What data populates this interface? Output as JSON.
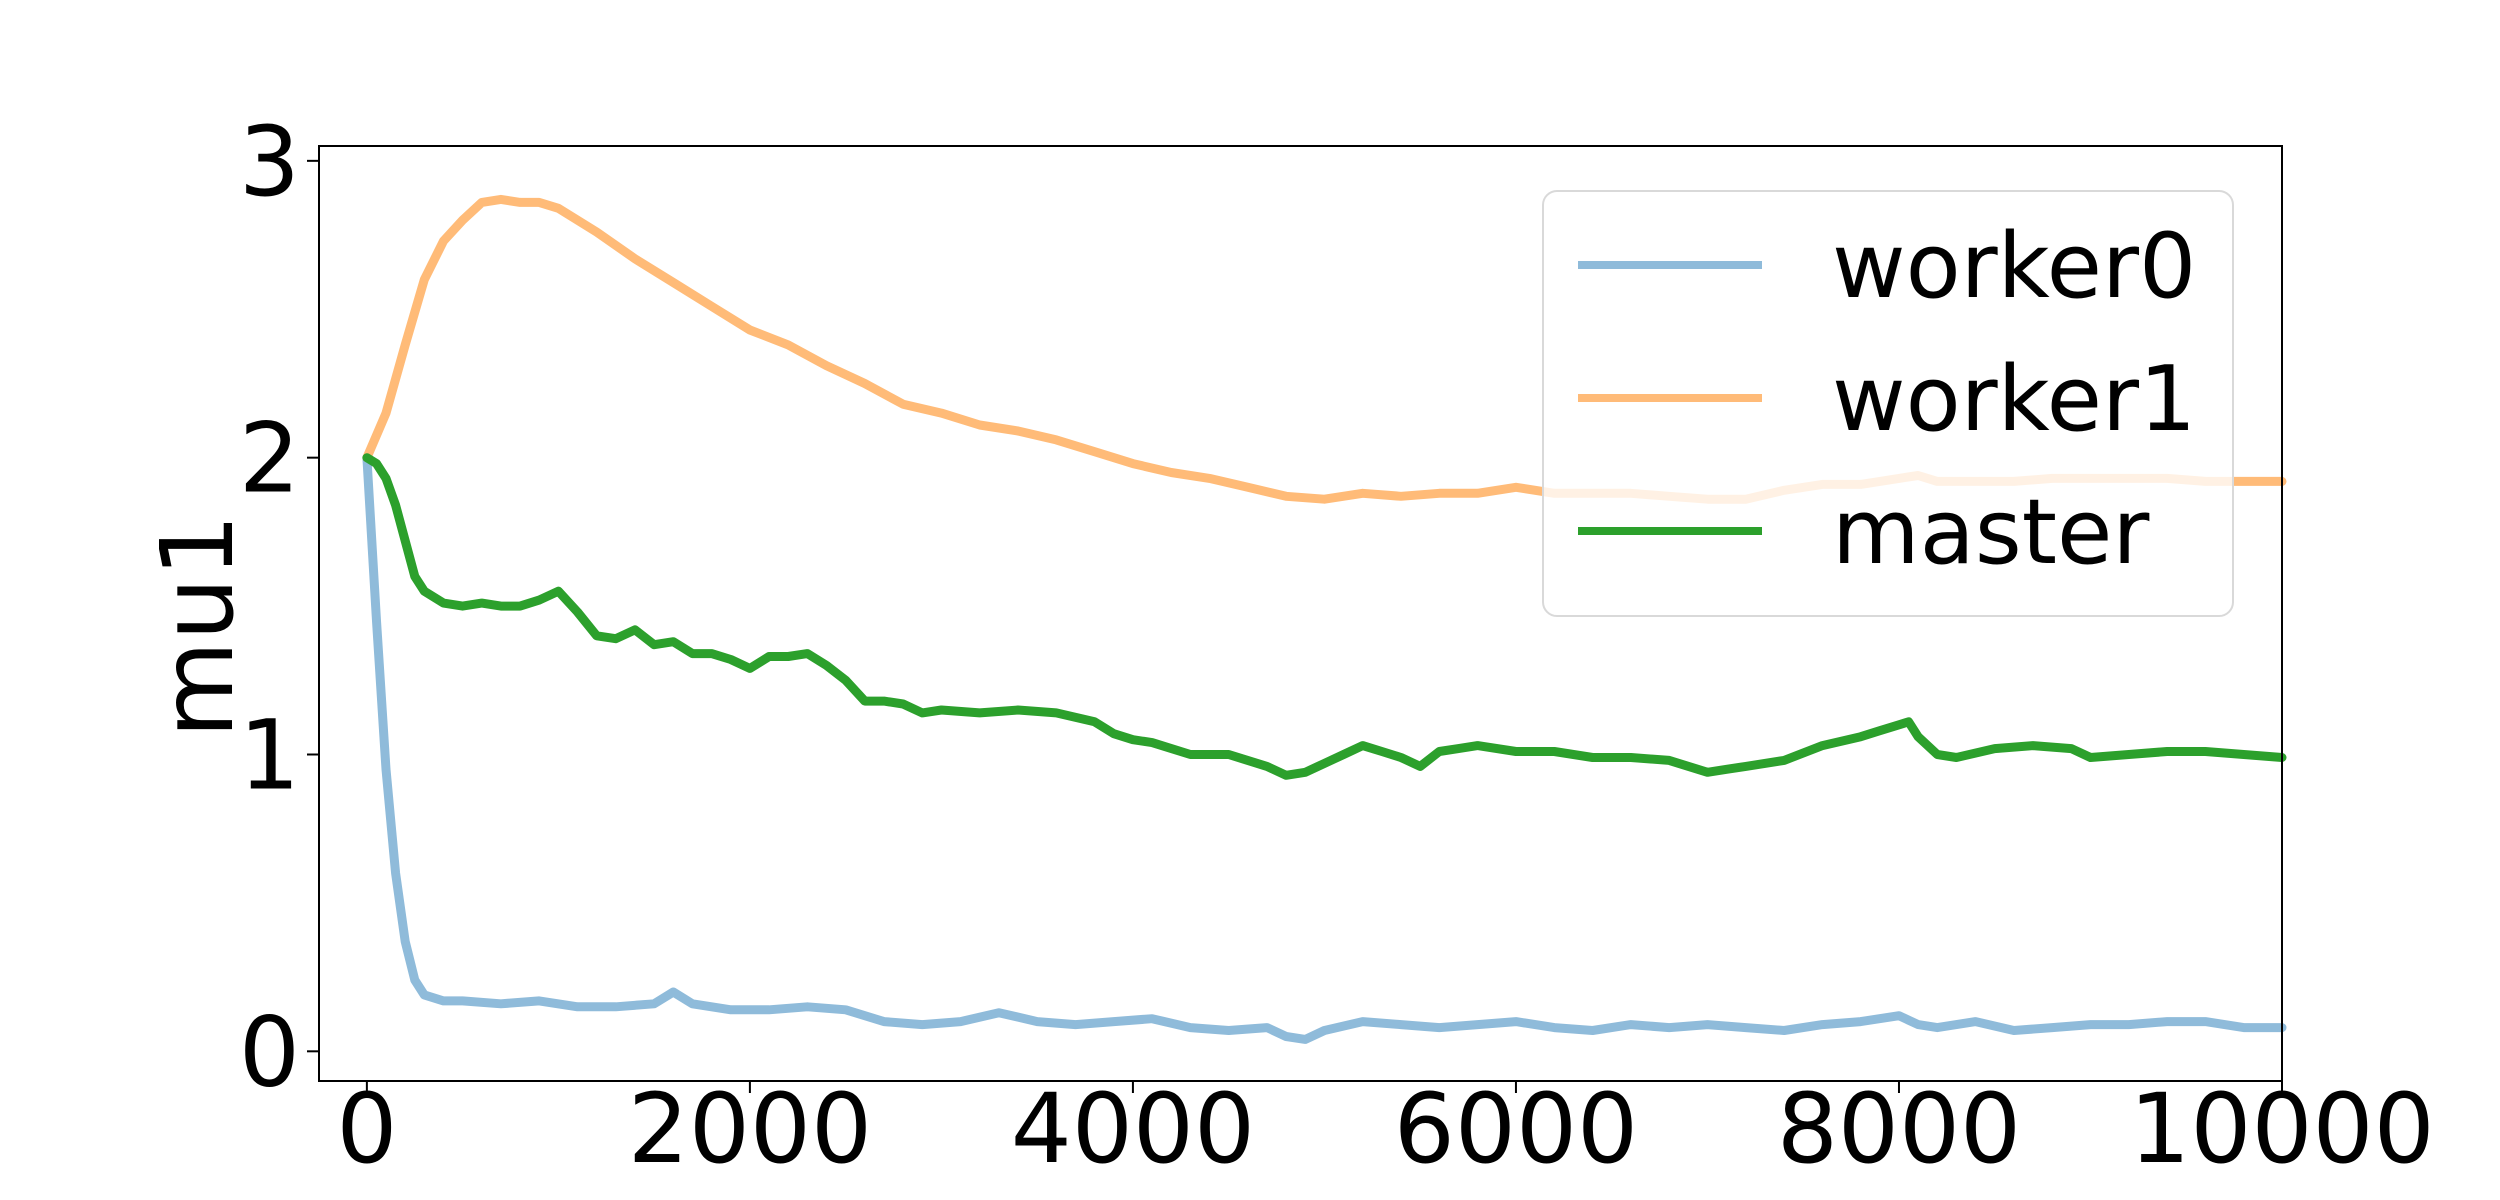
{
  "chart_data": {
    "type": "line",
    "title": "",
    "xlabel": "",
    "ylabel": "mu1",
    "xlim": [
      -250,
      10000
    ],
    "ylim": [
      -0.1,
      3.05
    ],
    "xticks": [
      0,
      2000,
      4000,
      6000,
      8000,
      10000
    ],
    "xtick_labels": [
      "0",
      "2000",
      "4000",
      "6000",
      "8000",
      "10000"
    ],
    "yticks": [
      0,
      1,
      2,
      3
    ],
    "ytick_labels": [
      "0",
      "1",
      "2",
      "3"
    ],
    "grid": false,
    "legend_position": "top-right",
    "series": [
      {
        "name": "worker0",
        "color": "#8fbbda",
        "x": [
          0,
          50,
          100,
          150,
          200,
          250,
          300,
          400,
          500,
          700,
          900,
          1100,
          1300,
          1500,
          1600,
          1700,
          1900,
          2100,
          2300,
          2500,
          2700,
          2900,
          3100,
          3300,
          3500,
          3700,
          3900,
          4100,
          4300,
          4500,
          4700,
          4800,
          4900,
          5000,
          5200,
          5400,
          5600,
          5800,
          6000,
          6200,
          6400,
          6600,
          6800,
          7000,
          7200,
          7400,
          7600,
          7800,
          8000,
          8100,
          8200,
          8400,
          8600,
          8800,
          9000,
          9200,
          9400,
          9600,
          9800,
          10000
        ],
        "values": [
          2.0,
          1.45,
          0.95,
          0.6,
          0.37,
          0.24,
          0.19,
          0.17,
          0.17,
          0.16,
          0.17,
          0.15,
          0.15,
          0.16,
          0.2,
          0.16,
          0.14,
          0.14,
          0.15,
          0.14,
          0.1,
          0.09,
          0.1,
          0.13,
          0.1,
          0.09,
          0.1,
          0.11,
          0.08,
          0.07,
          0.08,
          0.05,
          0.04,
          0.07,
          0.1,
          0.09,
          0.08,
          0.09,
          0.1,
          0.08,
          0.07,
          0.09,
          0.08,
          0.09,
          0.08,
          0.07,
          0.09,
          0.1,
          0.12,
          0.09,
          0.08,
          0.1,
          0.07,
          0.08,
          0.09,
          0.09,
          0.1,
          0.1,
          0.08,
          0.08
        ]
      },
      {
        "name": "worker1",
        "color": "#ffbb78",
        "x": [
          0,
          100,
          200,
          300,
          400,
          500,
          600,
          700,
          800,
          900,
          1000,
          1200,
          1400,
          1600,
          1800,
          2000,
          2200,
          2400,
          2600,
          2800,
          3000,
          3200,
          3400,
          3600,
          3800,
          4000,
          4200,
          4400,
          4600,
          4800,
          5000,
          5200,
          5400,
          5600,
          5800,
          6000,
          6200,
          6400,
          6600,
          6800,
          7000,
          7200,
          7400,
          7600,
          7800,
          8000,
          8100,
          8200,
          8400,
          8600,
          8800,
          9000,
          9200,
          9400,
          9600,
          9800,
          10000
        ],
        "values": [
          2.0,
          2.15,
          2.38,
          2.6,
          2.73,
          2.8,
          2.86,
          2.87,
          2.86,
          2.86,
          2.84,
          2.76,
          2.67,
          2.59,
          2.51,
          2.43,
          2.38,
          2.31,
          2.25,
          2.18,
          2.15,
          2.11,
          2.09,
          2.06,
          2.02,
          1.98,
          1.95,
          1.93,
          1.9,
          1.87,
          1.86,
          1.88,
          1.87,
          1.88,
          1.88,
          1.9,
          1.88,
          1.88,
          1.88,
          1.87,
          1.86,
          1.86,
          1.89,
          1.91,
          1.91,
          1.93,
          1.94,
          1.92,
          1.92,
          1.92,
          1.93,
          1.93,
          1.93,
          1.93,
          1.92,
          1.92,
          1.92
        ]
      },
      {
        "name": "master",
        "color": "#2ca02c",
        "x": [
          0,
          50,
          100,
          150,
          200,
          250,
          300,
          400,
          500,
          600,
          700,
          800,
          900,
          1000,
          1100,
          1200,
          1300,
          1400,
          1500,
          1600,
          1700,
          1800,
          1900,
          2000,
          2100,
          2200,
          2300,
          2400,
          2500,
          2600,
          2700,
          2800,
          2900,
          3000,
          3200,
          3400,
          3600,
          3800,
          3900,
          4000,
          4100,
          4300,
          4500,
          4700,
          4800,
          4900,
          5000,
          5100,
          5200,
          5300,
          5400,
          5500,
          5600,
          5700,
          5800,
          6000,
          6200,
          6400,
          6600,
          6800,
          7000,
          7100,
          7200,
          7400,
          7600,
          7800,
          7900,
          8000,
          8050,
          8100,
          8200,
          8300,
          8500,
          8700,
          8900,
          9000,
          9200,
          9400,
          9600,
          9800,
          10000
        ],
        "values": [
          2.0,
          1.98,
          1.93,
          1.84,
          1.72,
          1.6,
          1.55,
          1.51,
          1.5,
          1.51,
          1.5,
          1.5,
          1.52,
          1.55,
          1.48,
          1.4,
          1.39,
          1.42,
          1.37,
          1.38,
          1.34,
          1.34,
          1.32,
          1.29,
          1.33,
          1.33,
          1.34,
          1.3,
          1.25,
          1.18,
          1.18,
          1.17,
          1.14,
          1.15,
          1.14,
          1.15,
          1.14,
          1.11,
          1.07,
          1.05,
          1.04,
          1.0,
          1.0,
          0.96,
          0.93,
          0.94,
          0.97,
          1.0,
          1.03,
          1.01,
          0.99,
          0.96,
          1.01,
          1.02,
          1.03,
          1.01,
          1.01,
          0.99,
          0.99,
          0.98,
          0.94,
          0.95,
          0.96,
          0.98,
          1.03,
          1.06,
          1.08,
          1.1,
          1.11,
          1.06,
          1.0,
          0.99,
          1.02,
          1.03,
          1.02,
          0.99,
          1.0,
          1.01,
          1.01,
          1.0,
          0.99
        ]
      }
    ]
  }
}
